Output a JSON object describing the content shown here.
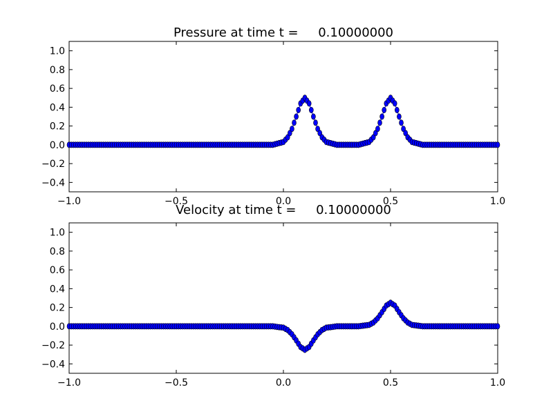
{
  "chart_data": [
    {
      "type": "scatter",
      "title": "Pressure at time t =     0.10000000",
      "xlabel": "",
      "ylabel": "",
      "xlim": [
        -1.0,
        1.0
      ],
      "ylim": [
        -0.5,
        1.1
      ],
      "grid": false,
      "xticks": [
        "−1.0",
        "−0.5",
        "0.0",
        "0.5",
        "1.0"
      ],
      "xtick_values": [
        -1.0,
        -0.5,
        0.0,
        0.5,
        1.0
      ],
      "yticks": [
        "−0.4",
        "−0.2",
        "0.0",
        "0.2",
        "0.4",
        "0.6",
        "0.8",
        "1.0"
      ],
      "ytick_values": [
        -0.4,
        -0.2,
        0.0,
        0.2,
        0.4,
        0.6,
        0.8,
        1.0
      ],
      "series": [
        {
          "x": [
            -1.0,
            -0.9,
            -0.8,
            -0.7,
            -0.6,
            -0.5,
            -0.4,
            -0.3,
            -0.2,
            -0.1,
            -0.05,
            0.0,
            0.02,
            0.04,
            0.06,
            0.08,
            0.1,
            0.12,
            0.14,
            0.16,
            0.18,
            0.2,
            0.25,
            0.3,
            0.35,
            0.4,
            0.42,
            0.44,
            0.46,
            0.48,
            0.5,
            0.52,
            0.54,
            0.56,
            0.58,
            0.6,
            0.65,
            0.7,
            0.8,
            0.9,
            1.0
          ],
          "y": [
            0.0,
            0.0,
            0.0,
            0.0,
            0.0,
            0.0,
            0.0,
            0.0,
            0.0,
            0.0,
            0.0,
            0.03,
            0.08,
            0.17,
            0.3,
            0.44,
            0.5,
            0.44,
            0.3,
            0.17,
            0.08,
            0.03,
            0.0,
            0.0,
            0.0,
            0.03,
            0.08,
            0.17,
            0.3,
            0.44,
            0.5,
            0.44,
            0.3,
            0.17,
            0.08,
            0.03,
            0.0,
            0.0,
            0.0,
            0.0,
            0.0
          ],
          "color": "#0000ff",
          "edgecolor": "#000000"
        }
      ]
    },
    {
      "type": "scatter",
      "title": "Velocity at time t =     0.10000000",
      "xlabel": "",
      "ylabel": "",
      "xlim": [
        -1.0,
        1.0
      ],
      "ylim": [
        -0.5,
        1.1
      ],
      "grid": false,
      "xticks": [
        "−1.0",
        "−0.5",
        "0.0",
        "0.5",
        "1.0"
      ],
      "xtick_values": [
        -1.0,
        -0.5,
        0.0,
        0.5,
        1.0
      ],
      "yticks": [
        "−0.4",
        "−0.2",
        "0.0",
        "0.2",
        "0.4",
        "0.6",
        "0.8",
        "1.0"
      ],
      "ytick_values": [
        -0.4,
        -0.2,
        0.0,
        0.2,
        0.4,
        0.6,
        0.8,
        1.0
      ],
      "series": [
        {
          "x": [
            -1.0,
            -0.9,
            -0.8,
            -0.7,
            -0.6,
            -0.5,
            -0.4,
            -0.3,
            -0.2,
            -0.1,
            -0.05,
            0.0,
            0.02,
            0.04,
            0.06,
            0.08,
            0.1,
            0.12,
            0.14,
            0.16,
            0.18,
            0.2,
            0.25,
            0.3,
            0.35,
            0.4,
            0.42,
            0.44,
            0.46,
            0.48,
            0.5,
            0.52,
            0.54,
            0.56,
            0.58,
            0.6,
            0.65,
            0.7,
            0.8,
            0.9,
            1.0
          ],
          "y": [
            0.0,
            0.0,
            0.0,
            0.0,
            0.0,
            0.0,
            0.0,
            0.0,
            0.0,
            0.0,
            0.0,
            -0.015,
            -0.04,
            -0.085,
            -0.15,
            -0.22,
            -0.25,
            -0.22,
            -0.15,
            -0.085,
            -0.04,
            -0.015,
            0.0,
            0.0,
            0.0,
            0.015,
            0.04,
            0.085,
            0.15,
            0.22,
            0.25,
            0.22,
            0.15,
            0.085,
            0.04,
            0.015,
            0.0,
            0.0,
            0.0,
            0.0,
            0.0
          ],
          "color": "#0000ff",
          "edgecolor": "#000000"
        }
      ]
    }
  ]
}
